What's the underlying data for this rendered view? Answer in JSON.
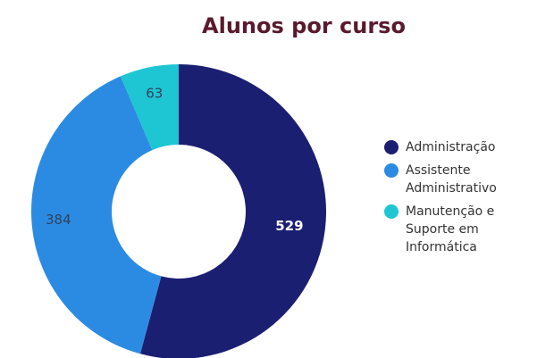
{
  "chart_data": {
    "type": "donut",
    "title": "Alunos por curso",
    "categories": [
      "Administração",
      "Assistente Administrativo",
      "Manutenção e Suporte em Informática"
    ],
    "values": [
      529,
      384,
      63
    ],
    "colors": [
      "#1b1f72",
      "#2b8be3",
      "#1ec6d3"
    ],
    "label_colors": [
      "#ffffff",
      "#33415c",
      "#33415c"
    ],
    "legend": "right"
  }
}
